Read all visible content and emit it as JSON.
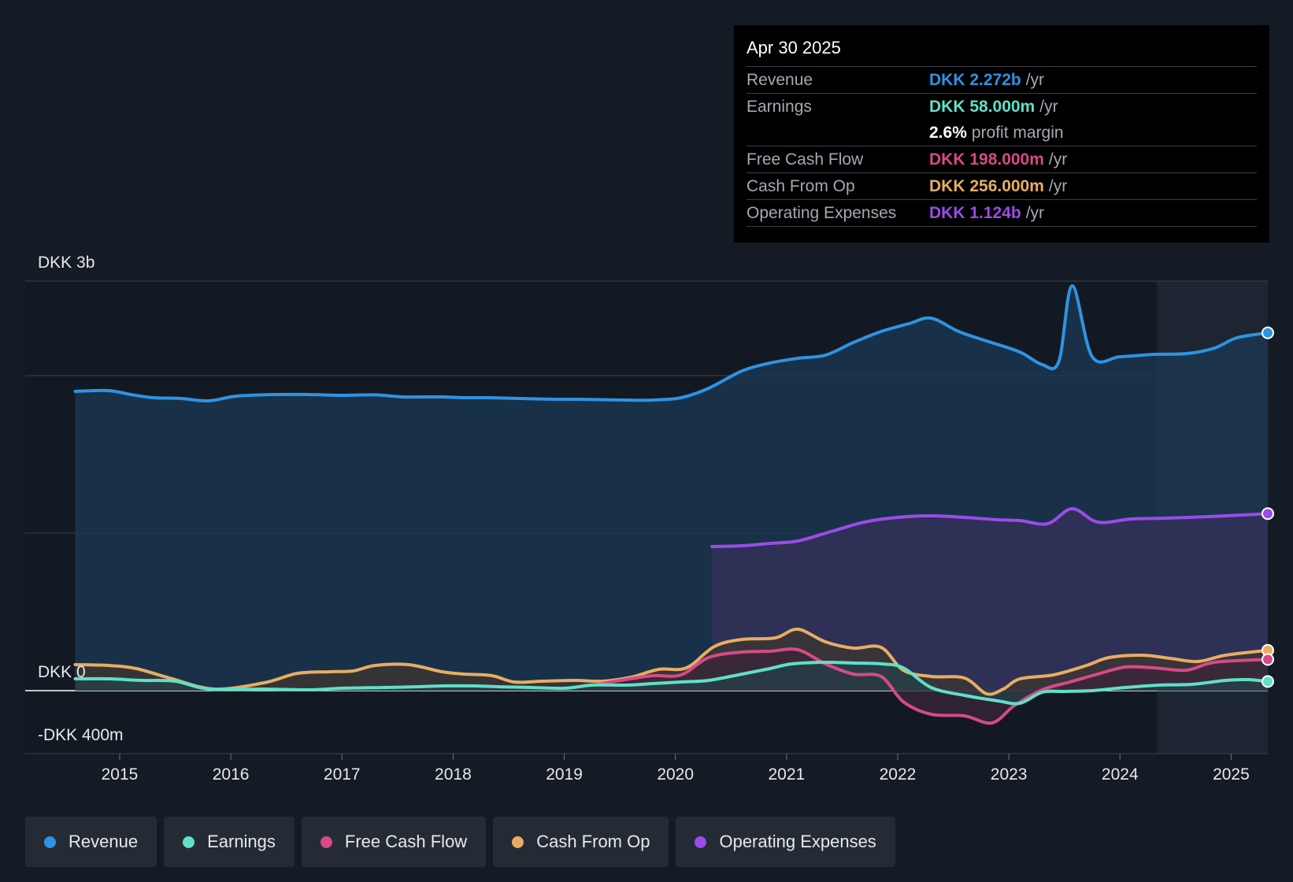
{
  "chart_data": {
    "type": "area",
    "currency": "DKK",
    "y_axis": {
      "top_label": "DKK 3b",
      "zero_label": "DKK 0",
      "bottom_label": "-DKK 400m",
      "ylim": [
        -400,
        2600
      ],
      "gridlines": [
        0,
        1000,
        2000,
        2600
      ]
    },
    "x_axis": {
      "ticks": [
        "2015",
        "2016",
        "2017",
        "2018",
        "2019",
        "2020",
        "2021",
        "2022",
        "2023",
        "2024",
        "2025"
      ],
      "xlim": [
        2014.15,
        2025.33
      ]
    },
    "forecast_shade_start": 2024.33,
    "series": [
      {
        "name": "Revenue",
        "color": "#2e93e3",
        "fill": "#1b3a56",
        "start": 2014.6,
        "points": [
          [
            2014.6,
            1900
          ],
          [
            2014.9,
            1905
          ],
          [
            2015.1,
            1880
          ],
          [
            2015.3,
            1860
          ],
          [
            2015.55,
            1855
          ],
          [
            2015.8,
            1840
          ],
          [
            2016.05,
            1870
          ],
          [
            2016.4,
            1880
          ],
          [
            2016.7,
            1880
          ],
          [
            2017.0,
            1875
          ],
          [
            2017.3,
            1878
          ],
          [
            2017.55,
            1865
          ],
          [
            2017.9,
            1865
          ],
          [
            2018.1,
            1860
          ],
          [
            2018.3,
            1860
          ],
          [
            2018.6,
            1855
          ],
          [
            2018.9,
            1850
          ],
          [
            2019.1,
            1850
          ],
          [
            2019.3,
            1848
          ],
          [
            2019.55,
            1845
          ],
          [
            2019.8,
            1845
          ],
          [
            2020.05,
            1860
          ],
          [
            2020.3,
            1920
          ],
          [
            2020.6,
            2030
          ],
          [
            2020.85,
            2080
          ],
          [
            2021.1,
            2110
          ],
          [
            2021.35,
            2130
          ],
          [
            2021.6,
            2210
          ],
          [
            2021.85,
            2280
          ],
          [
            2022.1,
            2330
          ],
          [
            2022.3,
            2365
          ],
          [
            2022.55,
            2280
          ],
          [
            2022.8,
            2220
          ],
          [
            2023.1,
            2150
          ],
          [
            2023.3,
            2070
          ],
          [
            2023.45,
            2090
          ],
          [
            2023.57,
            2570
          ],
          [
            2023.75,
            2120
          ],
          [
            2024.0,
            2120
          ],
          [
            2024.3,
            2135
          ],
          [
            2024.6,
            2140
          ],
          [
            2024.85,
            2175
          ],
          [
            2025.05,
            2240
          ],
          [
            2025.33,
            2272
          ]
        ]
      },
      {
        "name": "Operating Expenses",
        "color": "#9b4ce8",
        "fill": "#35305a",
        "start": 2020.33,
        "points": [
          [
            2020.33,
            915
          ],
          [
            2020.6,
            920
          ],
          [
            2020.85,
            935
          ],
          [
            2021.1,
            950
          ],
          [
            2021.4,
            1010
          ],
          [
            2021.7,
            1070
          ],
          [
            2022.0,
            1100
          ],
          [
            2022.3,
            1110
          ],
          [
            2022.6,
            1100
          ],
          [
            2022.9,
            1085
          ],
          [
            2023.1,
            1080
          ],
          [
            2023.35,
            1060
          ],
          [
            2023.57,
            1155
          ],
          [
            2023.8,
            1070
          ],
          [
            2024.1,
            1090
          ],
          [
            2024.4,
            1095
          ],
          [
            2024.8,
            1105
          ],
          [
            2025.1,
            1115
          ],
          [
            2025.33,
            1124
          ]
        ]
      },
      {
        "name": "Cash From Op",
        "color": "#e8ad62",
        "fill": "#3d3532",
        "start": 2014.6,
        "points": [
          [
            2014.6,
            165
          ],
          [
            2014.9,
            160
          ],
          [
            2015.15,
            140
          ],
          [
            2015.45,
            80
          ],
          [
            2015.85,
            10
          ],
          [
            2016.3,
            50
          ],
          [
            2016.6,
            110
          ],
          [
            2016.9,
            120
          ],
          [
            2017.1,
            125
          ],
          [
            2017.3,
            160
          ],
          [
            2017.6,
            165
          ],
          [
            2017.9,
            120
          ],
          [
            2018.1,
            105
          ],
          [
            2018.35,
            95
          ],
          [
            2018.55,
            55
          ],
          [
            2018.8,
            60
          ],
          [
            2019.1,
            65
          ],
          [
            2019.35,
            60
          ],
          [
            2019.6,
            85
          ],
          [
            2019.85,
            135
          ],
          [
            2020.1,
            145
          ],
          [
            2020.35,
            280
          ],
          [
            2020.6,
            325
          ],
          [
            2020.9,
            335
          ],
          [
            2021.1,
            390
          ],
          [
            2021.35,
            310
          ],
          [
            2021.6,
            270
          ],
          [
            2021.85,
            275
          ],
          [
            2022.05,
            130
          ],
          [
            2022.3,
            90
          ],
          [
            2022.6,
            80
          ],
          [
            2022.8,
            -20
          ],
          [
            2022.95,
            10
          ],
          [
            2023.1,
            75
          ],
          [
            2023.4,
            100
          ],
          [
            2023.7,
            160
          ],
          [
            2023.9,
            210
          ],
          [
            2024.2,
            225
          ],
          [
            2024.45,
            205
          ],
          [
            2024.7,
            185
          ],
          [
            2024.95,
            225
          ],
          [
            2025.33,
            256
          ]
        ]
      },
      {
        "name": "Free Cash Flow",
        "color": "#d64a86",
        "fill": "#3a2638",
        "start": 2019.3,
        "points": [
          [
            2019.3,
            40
          ],
          [
            2019.55,
            70
          ],
          [
            2019.8,
            95
          ],
          [
            2020.05,
            100
          ],
          [
            2020.3,
            210
          ],
          [
            2020.6,
            245
          ],
          [
            2020.85,
            250
          ],
          [
            2021.1,
            260
          ],
          [
            2021.35,
            170
          ],
          [
            2021.6,
            105
          ],
          [
            2021.85,
            90
          ],
          [
            2022.05,
            -70
          ],
          [
            2022.3,
            -150
          ],
          [
            2022.6,
            -160
          ],
          [
            2022.85,
            -205
          ],
          [
            2023.05,
            -95
          ],
          [
            2023.3,
            5
          ],
          [
            2023.55,
            55
          ],
          [
            2023.8,
            105
          ],
          [
            2024.05,
            150
          ],
          [
            2024.3,
            145
          ],
          [
            2024.6,
            130
          ],
          [
            2024.85,
            180
          ],
          [
            2025.33,
            198
          ]
        ]
      },
      {
        "name": "Earnings",
        "color": "#5fe0c8",
        "fill": "#26404a",
        "start": 2014.6,
        "points": [
          [
            2014.6,
            75
          ],
          [
            2014.9,
            75
          ],
          [
            2015.2,
            65
          ],
          [
            2015.5,
            60
          ],
          [
            2015.8,
            10
          ],
          [
            2016.3,
            10
          ],
          [
            2016.7,
            5
          ],
          [
            2017.0,
            15
          ],
          [
            2017.4,
            20
          ],
          [
            2017.7,
            25
          ],
          [
            2017.9,
            30
          ],
          [
            2018.2,
            30
          ],
          [
            2018.4,
            25
          ],
          [
            2018.7,
            20
          ],
          [
            2019.0,
            15
          ],
          [
            2019.25,
            35
          ],
          [
            2019.55,
            35
          ],
          [
            2019.8,
            45
          ],
          [
            2020.05,
            55
          ],
          [
            2020.3,
            65
          ],
          [
            2020.6,
            105
          ],
          [
            2020.85,
            140
          ],
          [
            2021.05,
            170
          ],
          [
            2021.35,
            180
          ],
          [
            2021.6,
            175
          ],
          [
            2021.85,
            170
          ],
          [
            2022.05,
            145
          ],
          [
            2022.3,
            20
          ],
          [
            2022.6,
            -30
          ],
          [
            2022.9,
            -65
          ],
          [
            2023.1,
            -80
          ],
          [
            2023.3,
            -10
          ],
          [
            2023.5,
            -5
          ],
          [
            2023.75,
            0
          ],
          [
            2024.05,
            20
          ],
          [
            2024.35,
            35
          ],
          [
            2024.65,
            40
          ],
          [
            2024.95,
            65
          ],
          [
            2025.15,
            70
          ],
          [
            2025.33,
            58
          ]
        ]
      }
    ],
    "tooltip": {
      "date": "Apr 30 2025",
      "rows": [
        {
          "label": "Revenue",
          "value": "DKK 2.272b",
          "unit": "/yr",
          "color": "#2e93e3"
        },
        {
          "label": "Earnings",
          "value": "DKK 58.000m",
          "unit": "/yr",
          "color": "#5fe0c8"
        },
        {
          "label": "",
          "value": "2.6%",
          "unit": "profit margin",
          "color": "#ffffff"
        },
        {
          "label": "Free Cash Flow",
          "value": "DKK 198.000m",
          "unit": "/yr",
          "color": "#d64a86"
        },
        {
          "label": "Cash From Op",
          "value": "DKK 256.000m",
          "unit": "/yr",
          "color": "#e8ad62"
        },
        {
          "label": "Operating Expenses",
          "value": "DKK 1.124b",
          "unit": "/yr",
          "color": "#9b4ce8"
        }
      ]
    },
    "legend": [
      {
        "label": "Revenue",
        "color": "#2e93e3"
      },
      {
        "label": "Earnings",
        "color": "#5fe0c8"
      },
      {
        "label": "Free Cash Flow",
        "color": "#d64a86"
      },
      {
        "label": "Cash From Op",
        "color": "#e8ad62"
      },
      {
        "label": "Operating Expenses",
        "color": "#9b4ce8"
      }
    ]
  }
}
